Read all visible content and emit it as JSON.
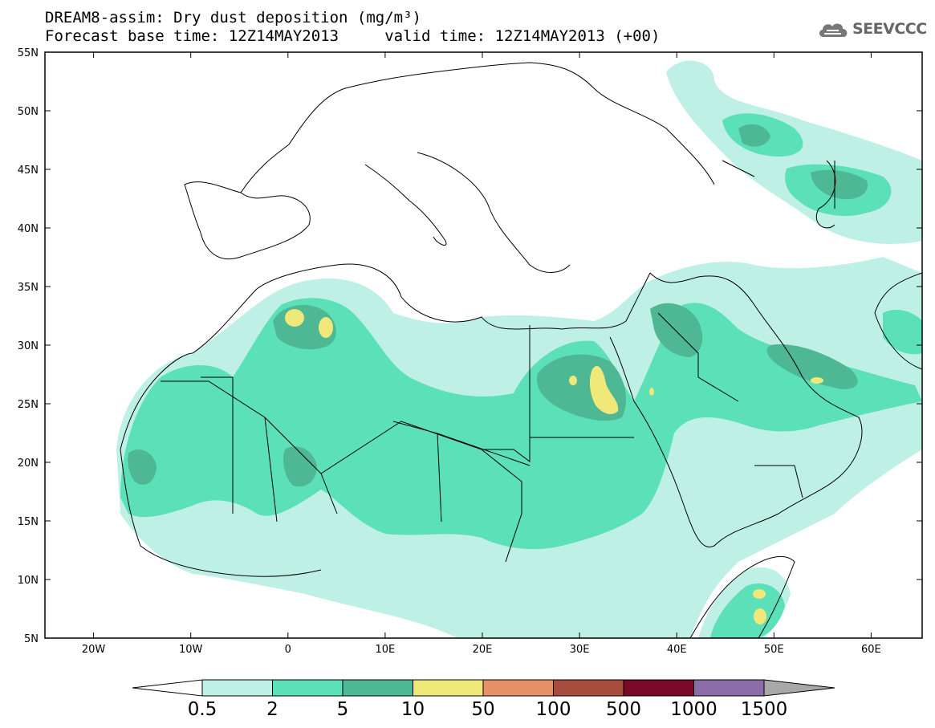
{
  "title": {
    "line1": "DREAM8-assim: Dry dust deposition (mg/m³)",
    "line2": "Forecast base time: 12Z14MAY2013     valid time: 12Z14MAY2013 (+00)"
  },
  "logo": {
    "text": "SEEVCCC",
    "icon": "cloud-icon"
  },
  "map": {
    "lat_labels": [
      "55N",
      "50N",
      "45N",
      "40N",
      "35N",
      "30N",
      "25N",
      "20N",
      "15N",
      "10N",
      "5N"
    ],
    "lon_labels": [
      "20W",
      "10W",
      "0",
      "10E",
      "20E",
      "30E",
      "40E",
      "50E",
      "60E"
    ]
  },
  "colorbar": {
    "labels": [
      "0.5",
      "2",
      "5",
      "10",
      "50",
      "100",
      "500",
      "1000",
      "1500"
    ],
    "colors": [
      "#bff0e6",
      "#5ce0b8",
      "#4db893",
      "#f0e878",
      "#e89068",
      "#a84c40",
      "#7a0a28",
      "#8c6ca8",
      "#a8a8a8"
    ]
  }
}
